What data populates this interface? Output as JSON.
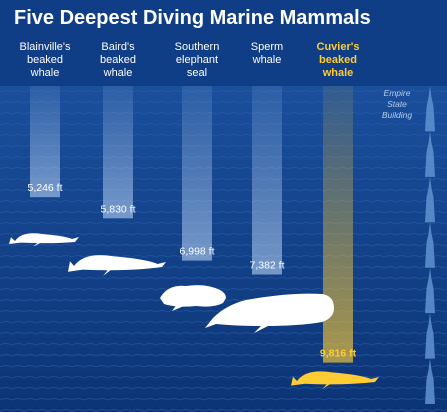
{
  "title": "Five Deepest Diving Marine Mammals",
  "chart_data": {
    "type": "bar",
    "categories": [
      "Blainville's beaked whale",
      "Baird's beaked whale",
      "Southern elephant seal",
      "Sperm whale",
      "Cuvier's beaked whale"
    ],
    "category_lines": [
      [
        "Blainville's",
        "beaked",
        "whale"
      ],
      [
        "Baird's",
        "beaked",
        "whale"
      ],
      [
        "Southern",
        "elephant",
        "seal"
      ],
      [
        "Sperm",
        "whale"
      ],
      [
        "Cuvier's",
        "beaked",
        "whale"
      ]
    ],
    "values": [
      5246,
      5830,
      6998,
      7382,
      9816
    ],
    "value_labels": [
      "5,246 ft",
      "5,830 ft",
      "6,998 ft",
      "7,382 ft",
      "9,816 ft"
    ],
    "unit": "ft",
    "highlight_index": 4,
    "orientation": "downward depth",
    "reference": {
      "lines": [
        "Empire",
        "State",
        "Building"
      ],
      "count": 7
    },
    "colors": {
      "background": "#0f3d86",
      "bar": "#b8d8f8",
      "animal": "#ffffff",
      "highlight": "#ffcc33",
      "reference": "#5f93d0"
    }
  }
}
